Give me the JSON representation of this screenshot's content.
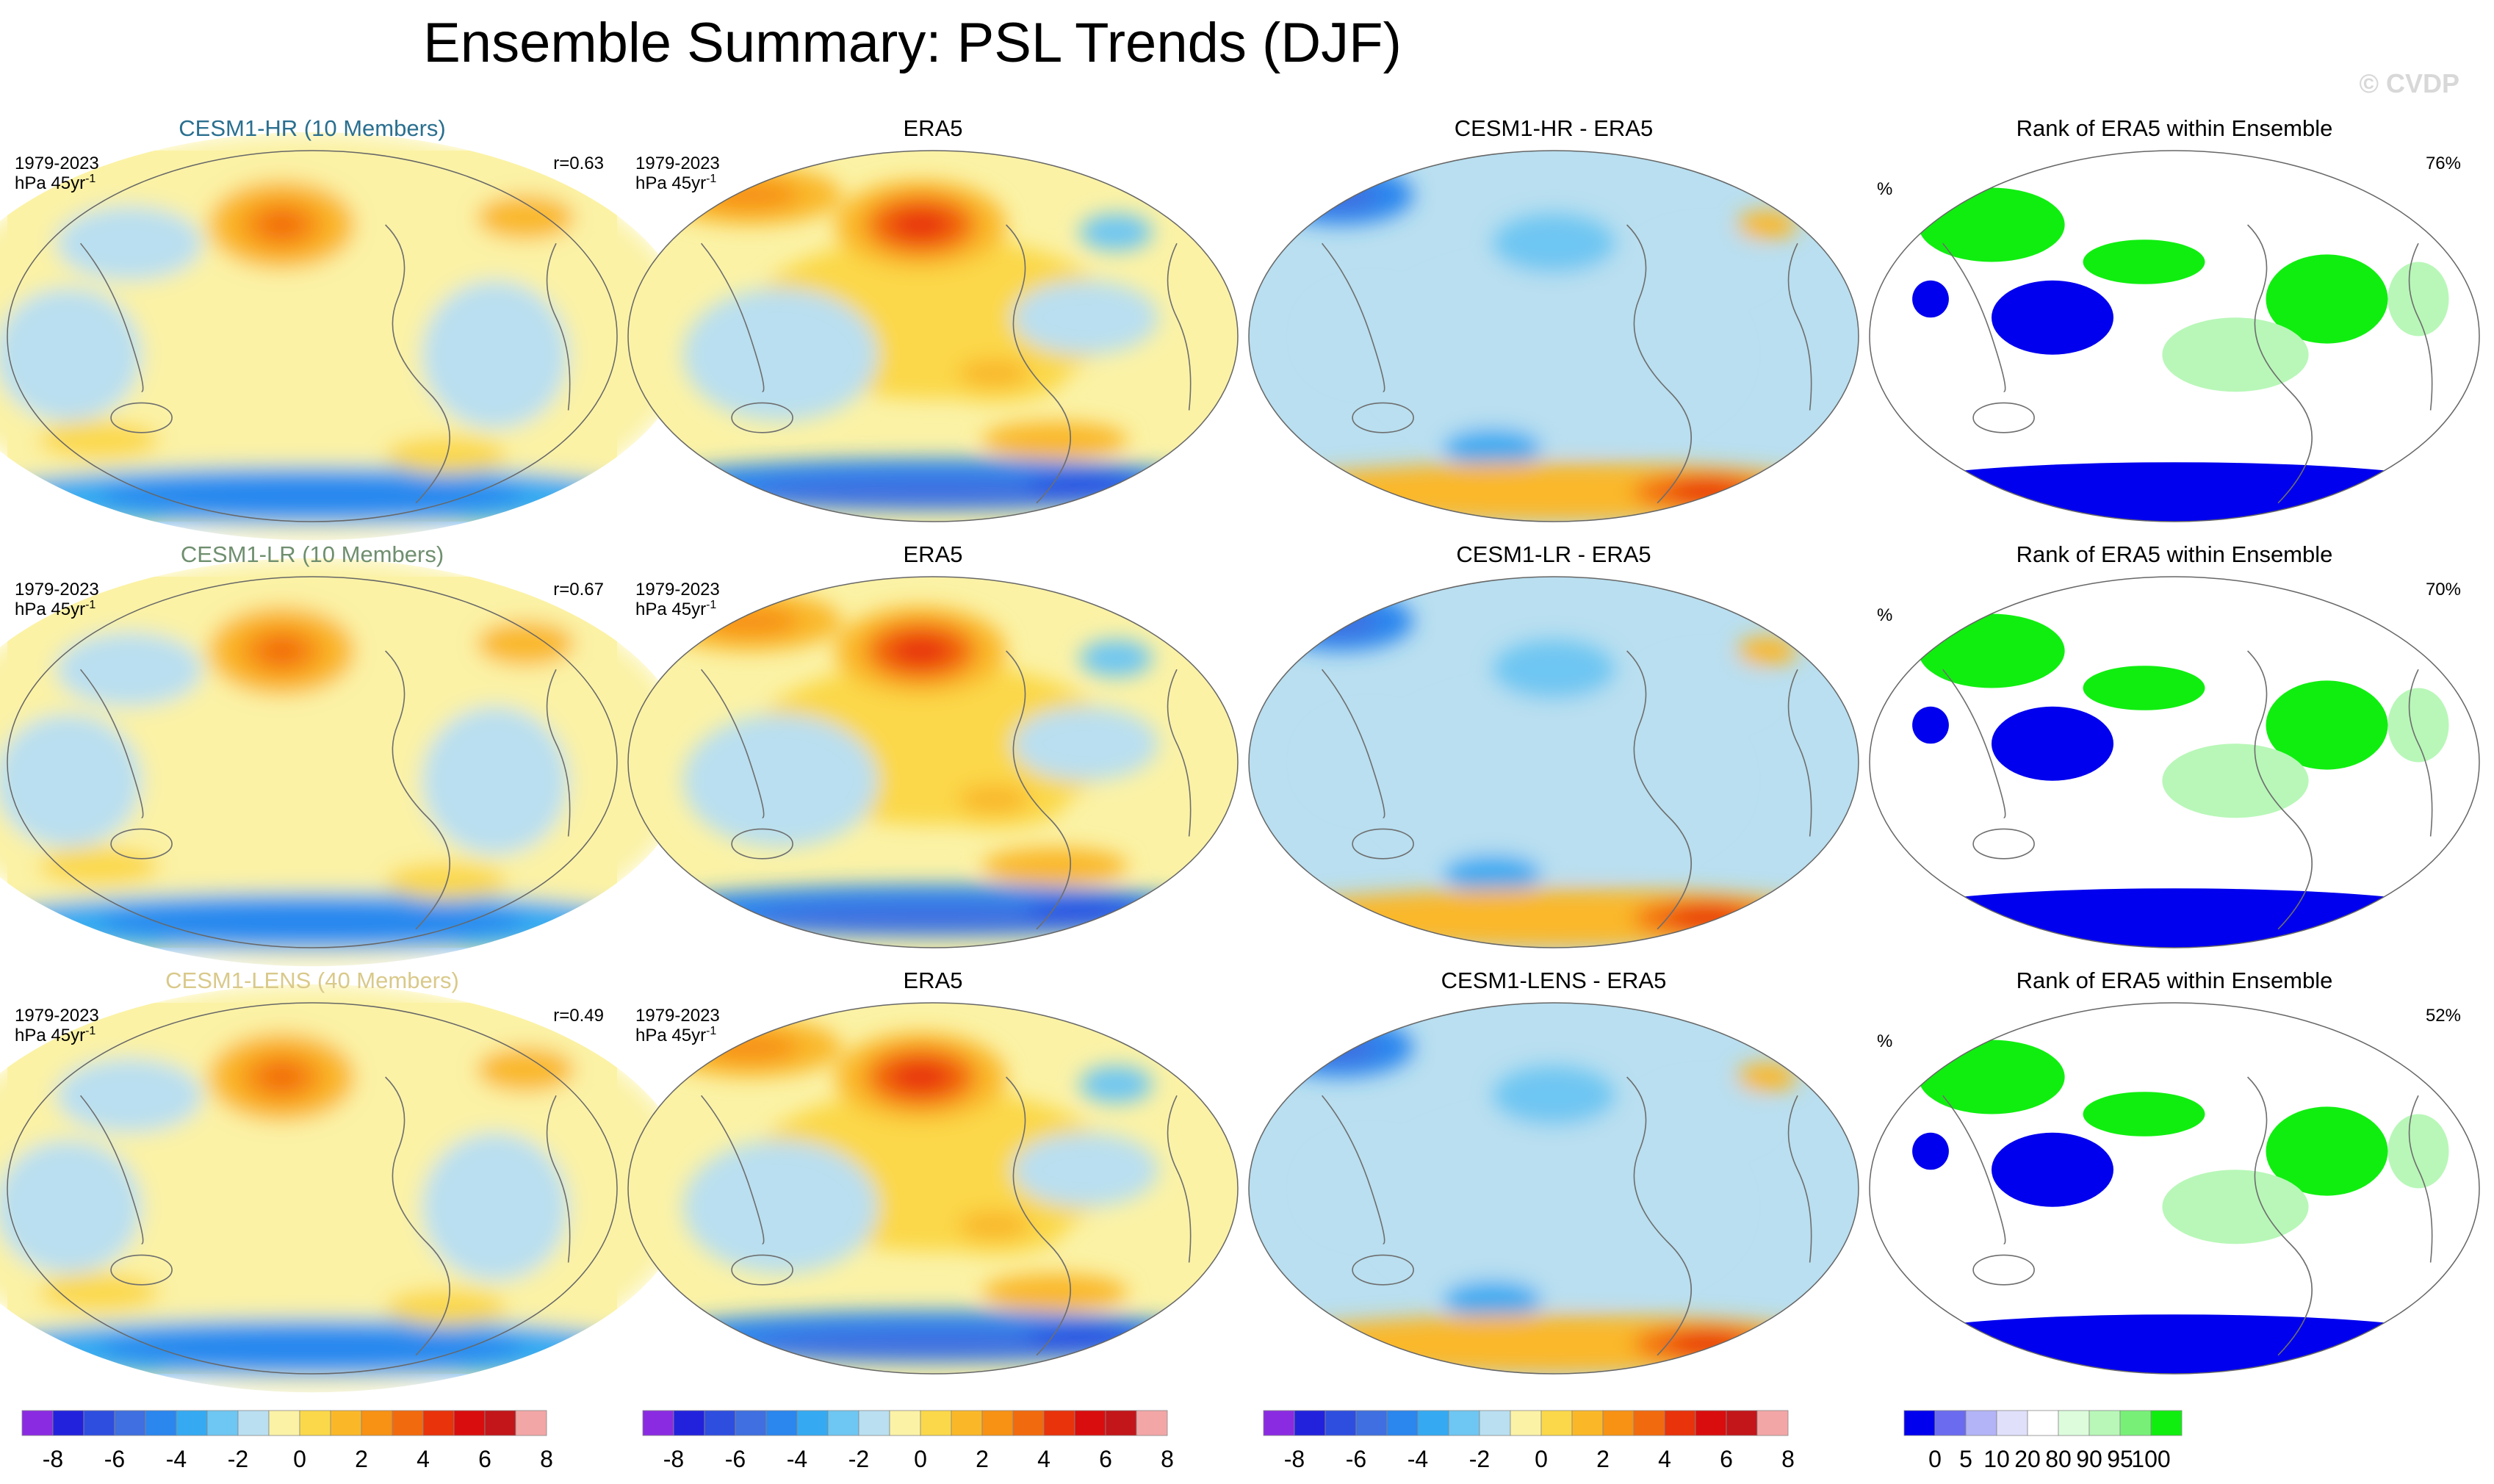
{
  "figure": {
    "title": "Ensemble Summary: PSL Trends (DJF)",
    "watermark": "© CVDP"
  },
  "chart_data": {
    "type": "heatmap",
    "variable": "PSL",
    "season": "DJF",
    "period": "1979-2023",
    "units": "hPa 45yr",
    "units_exponent": "-1",
    "rows": [
      {
        "ensemble": "CESM1-HR (10 Members)",
        "ensemble_color": "#2a6f8f",
        "r": "r=0.63",
        "diff_title": "CESM1-HR - ERA5",
        "rank_percent": "76%"
      },
      {
        "ensemble": "CESM1-LR (10 Members)",
        "ensemble_color": "#6f8f6f",
        "r": "r=0.67",
        "diff_title": "CESM1-LR - ERA5",
        "rank_percent": "70%"
      },
      {
        "ensemble": "CESM1-LENS (40 Members)",
        "ensemble_color": "#d9c98a",
        "r": "r=0.49",
        "diff_title": "CESM1-LENS - ERA5",
        "rank_percent": "52%"
      }
    ],
    "obs_title": "ERA5",
    "rank_title": "Rank of ERA5 within Ensemble",
    "rank_units": "%",
    "trend_colorbar": {
      "colors": [
        "#8a2be2",
        "#2222dd",
        "#2e4ee0",
        "#3f6fe0",
        "#2b86ee",
        "#35aaf2",
        "#6ec6f2",
        "#b9dff0",
        "#fbf2a6",
        "#fbd84a",
        "#fab829",
        "#f79214",
        "#f26a0e",
        "#e8330b",
        "#d90d0d",
        "#c2161a",
        "#f3a6a6"
      ],
      "ticks": [
        "-8",
        "-6",
        "-4",
        "-2",
        "0",
        "2",
        "4",
        "6",
        "8"
      ]
    },
    "rank_colorbar": {
      "colors": [
        "#0000ee",
        "#6b6bf0",
        "#b3b3f7",
        "#e0e0fb",
        "#ffffff",
        "#dcfcdc",
        "#b8f7b8",
        "#78f078",
        "#10ee10"
      ],
      "ticks": [
        "0",
        "5",
        "10",
        "20",
        "80",
        "90",
        "95",
        "100"
      ]
    }
  }
}
